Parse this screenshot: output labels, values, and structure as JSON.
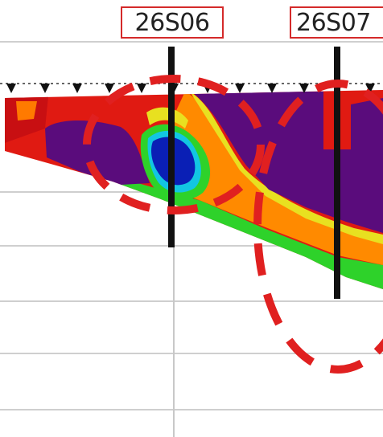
{
  "boreholes": [
    {
      "label": "26S06"
    },
    {
      "label": "26S07"
    }
  ],
  "colors": {
    "borehole_line": "#111111",
    "marker": "#111111",
    "highlight_ellipse": "#e02020",
    "grid_line": "#cfcfcf",
    "label_border": "#d42a2a",
    "label_text": "#222222",
    "resistivity_scale": [
      "#0a1fb5",
      "#10c0e0",
      "#22c62a",
      "#e6e61a",
      "#ff8800",
      "#ff1a10",
      "#d01010",
      "#6a0c6a",
      "#580d7a"
    ]
  },
  "icons": [
    "station-marker-icon"
  ]
}
